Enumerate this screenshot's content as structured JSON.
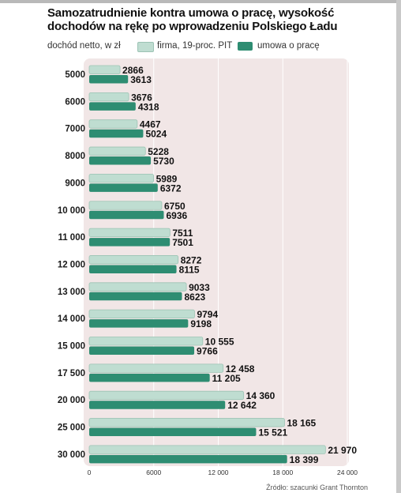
{
  "title": "Samozatrudnienie kontra umowa o pracę, wysokość dochodów na rękę po wprowadzeniu Polskiego Ładu",
  "legend": {
    "unit_label": "dochód netto, w zł",
    "series_firma": "firma, 19-proc. PIT",
    "series_umowa": "umowa o pracę"
  },
  "source": "Źródło: szacunki Grant Thornton",
  "colors": {
    "firma_fill": "#bfddd1",
    "firma_border": "#9cc3b4",
    "umowa_fill": "#2e8d72",
    "plot_bg": "#f1e6e6"
  },
  "chart_data": {
    "type": "bar",
    "orientation": "horizontal",
    "categories": [
      "5000",
      "6000",
      "7000",
      "8000",
      "9000",
      "10 000",
      "11 000",
      "12 000",
      "13 000",
      "14 000",
      "15 000",
      "17 500",
      "20 000",
      "25 000",
      "30 000"
    ],
    "series": [
      {
        "name": "firma, 19-proc. PIT",
        "values": [
          2866,
          3676,
          4467,
          5228,
          5989,
          6750,
          7511,
          8272,
          9033,
          9794,
          10555,
          12458,
          14360,
          18165,
          21970
        ],
        "labels": [
          "2866",
          "3676",
          "4467",
          "5228",
          "5989",
          "6750",
          "7511",
          "8272",
          "9033",
          "9794",
          "10 555",
          "12 458",
          "14 360",
          "18 165",
          "21 970"
        ]
      },
      {
        "name": "umowa o pracę",
        "values": [
          3613,
          4318,
          5024,
          5730,
          6372,
          6936,
          7501,
          8115,
          8623,
          9198,
          9766,
          11205,
          12642,
          15521,
          18399
        ],
        "labels": [
          "3613",
          "4318",
          "5024",
          "5730",
          "6372",
          "6936",
          "7501",
          "8115",
          "8623",
          "9198",
          "9766",
          "11 205",
          "12 642",
          "15 521",
          "18 399"
        ]
      }
    ],
    "xlim": [
      0,
      24000
    ],
    "xticks": [
      0,
      6000,
      12000,
      18000,
      24000
    ],
    "xtick_labels": [
      "0",
      "6000",
      "12 000",
      "18 000",
      "24 000"
    ],
    "grid": true,
    "legend_position": "top-left"
  }
}
